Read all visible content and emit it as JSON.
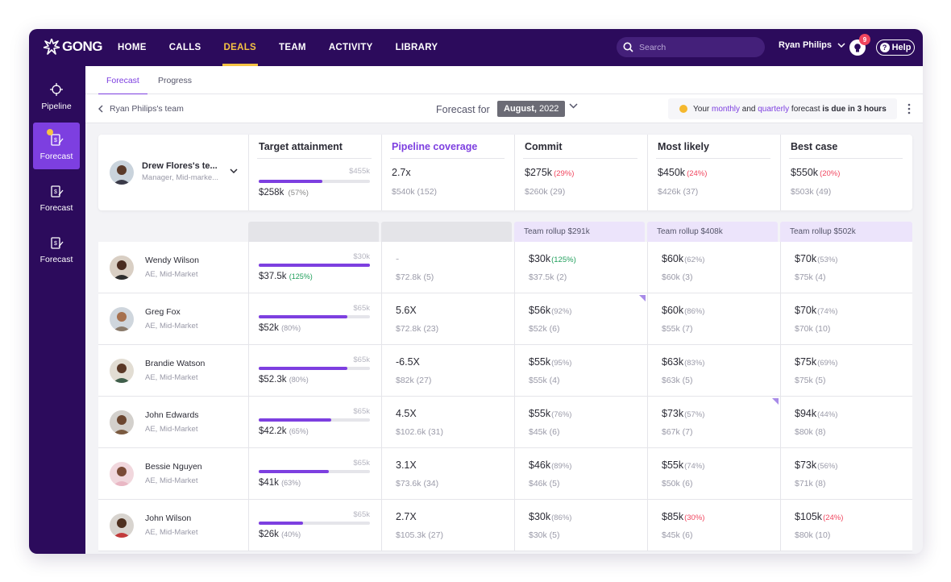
{
  "app": {
    "logo": "GONG"
  },
  "nav": {
    "links": [
      "HOME",
      "CALLS",
      "DEALS",
      "TEAM",
      "ACTIVITY",
      "LIBRARY"
    ],
    "active": "DEALS",
    "search_placeholder": "Search",
    "user_name": "Ryan Philips",
    "notification_count": "9",
    "help_label": "Help"
  },
  "sidenav": [
    {
      "label": "Pipeline",
      "icon": "crosshair-icon"
    },
    {
      "label": "Forecast",
      "icon": "forecast-icon",
      "active": true
    },
    {
      "label": "Forecast",
      "icon": "forecast-icon"
    },
    {
      "label": "Forecast",
      "icon": "forecast-icon"
    }
  ],
  "tabs": [
    "Forecast",
    "Progress"
  ],
  "subbar": {
    "team_link": "Ryan Philips's team",
    "forecast_for": "Forecast for",
    "month": "August,",
    "year": "2022",
    "notice_pre": "Your ",
    "notice_monthly": "monthly",
    "notice_and": " and ",
    "notice_quarterly": "quarterly",
    "notice_mid": " forecast ",
    "notice_bold": "is due in 3 hours"
  },
  "summary": {
    "manager_name": "Drew Flores's te...",
    "manager_role": "Manager, Mid-marke...",
    "target": {
      "label": "Target attainment",
      "cap": "$455k",
      "value": "$258k",
      "pct": "(57%)",
      "progress": 0.57
    },
    "pipeline": {
      "label": "Pipeline coverage",
      "value": "2.7x",
      "sub": "$540k (152)"
    },
    "commit": {
      "label": "Commit",
      "value": "$275k",
      "pct": "(29%)",
      "sub": "$260k (29)"
    },
    "likely": {
      "label": "Most likely",
      "value": "$450k",
      "pct": "(24%)",
      "sub": "$426k (37)"
    },
    "best": {
      "label": "Best case",
      "value": "$550k",
      "pct": "(20%)",
      "sub": "$503k (49)"
    }
  },
  "rollups": {
    "commit": "Team rollup $291k",
    "likely": "Team rollup $408k",
    "best": "Team rollup $502k"
  },
  "reps": [
    {
      "name": "Wendy Wilson",
      "role": "AE, Mid-Market",
      "cap": "$30k",
      "target": "$37.5k",
      "target_pct": "(125%)",
      "progress": 1.0,
      "pipe": "-",
      "pipe_sub": "$72.8k (5)",
      "commit": "$30k",
      "commit_pct": "(125%)",
      "commit_sub": "$37.5k (2)",
      "likely": "$60k",
      "likely_pct": "(62%)",
      "likely_sub": "$60k (3)",
      "best": "$70k",
      "best_pct": "(53%)",
      "best_sub": "$75k (4)"
    },
    {
      "name": "Greg Fox",
      "role": "AE, Mid-Market",
      "cap": "$65k",
      "target": "$52k",
      "target_pct": "(80%)",
      "progress": 0.8,
      "pipe": "5.6X",
      "pipe_sub": "$72.8k (23)",
      "commit": "$56k",
      "commit_pct": "(92%)",
      "commit_sub": "$52k (6)",
      "likely": "$60k",
      "likely_pct": "(86%)",
      "likely_sub": "$55k (7)",
      "best": "$70k",
      "best_pct": "(74%)",
      "best_sub": "$70k (10)"
    },
    {
      "name": "Brandie Watson",
      "role": "AE, Mid-Market",
      "cap": "$65k",
      "target": "$52.3k",
      "target_pct": "(80%)",
      "progress": 0.8,
      "pipe": "-6.5X",
      "pipe_sub": "$82k (27)",
      "commit": "$55k",
      "commit_pct": "(95%)",
      "commit_sub": "$55k (4)",
      "likely": "$63k",
      "likely_pct": "(83%)",
      "likely_sub": "$63k (5)",
      "best": "$75k",
      "best_pct": "(69%)",
      "best_sub": "$75k (5)"
    },
    {
      "name": "John Edwards",
      "role": "AE, Mid-Market",
      "cap": "$65k",
      "target": "$42.2k",
      "target_pct": "(65%)",
      "progress": 0.65,
      "pipe": "4.5X",
      "pipe_sub": "$102.6k (31)",
      "commit": "$55k",
      "commit_pct": "(76%)",
      "commit_sub": "$45k (6)",
      "likely": "$73k",
      "likely_pct": "(57%)",
      "likely_sub": "$67k (7)",
      "best": "$94k",
      "best_pct": "(44%)",
      "best_sub": "$80k (8)"
    },
    {
      "name": "Bessie Nguyen",
      "role": "AE, Mid-Market",
      "cap": "$65k",
      "target": "$41k",
      "target_pct": "(63%)",
      "progress": 0.63,
      "pipe": "3.1X",
      "pipe_sub": "$73.6k (34)",
      "commit": "$46k",
      "commit_pct": "(89%)",
      "commit_sub": "$46k (5)",
      "likely": "$55k",
      "likely_pct": "(74%)",
      "likely_sub": "$50k (6)",
      "best": "$73k",
      "best_pct": "(56%)",
      "best_sub": "$71k (8)"
    },
    {
      "name": "John Wilson",
      "role": "AE, Mid-Market",
      "cap": "$65k",
      "target": "$26k",
      "target_pct": "(40%)",
      "progress": 0.4,
      "pipe": "2.7X",
      "pipe_sub": "$105.3k (27)",
      "commit": "$30k",
      "commit_pct": "(86%)",
      "commit_sub": "$30k (5)",
      "likely": "$85k",
      "likely_pct": "(30%)",
      "likely_sub": "$45k (6)",
      "best": "$105k",
      "best_pct": "(24%)",
      "best_sub": "$80k (10)"
    }
  ],
  "colors": {
    "nav_bg": "#2c0b5c",
    "accent": "#7d3fe0",
    "active_nav": "#f6c343",
    "negative": "#f0455e",
    "positive": "#1e9e5a",
    "rollup_bg": "#ece4fb"
  }
}
